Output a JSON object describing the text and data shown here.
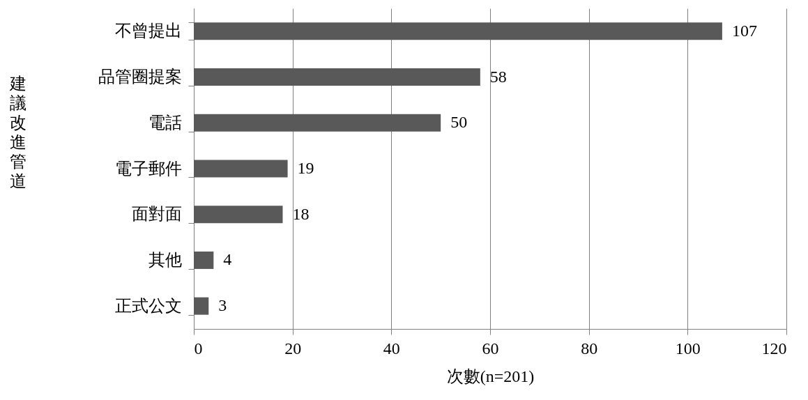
{
  "chart_data": {
    "type": "bar",
    "orientation": "horizontal",
    "ylabel": "建議改進管道",
    "xlabel": "次數(n=201)",
    "categories": [
      "不曾提出",
      "品管圈提案",
      "電話",
      "電子郵件",
      "面對面",
      "其他",
      "正式公文"
    ],
    "values": [
      107,
      58,
      50,
      19,
      18,
      4,
      3
    ],
    "color": "#595959",
    "xlim": [
      0,
      120
    ],
    "xticks": [
      0,
      20,
      40,
      60,
      80,
      100,
      120
    ],
    "grid": "x",
    "data_labels": true
  }
}
